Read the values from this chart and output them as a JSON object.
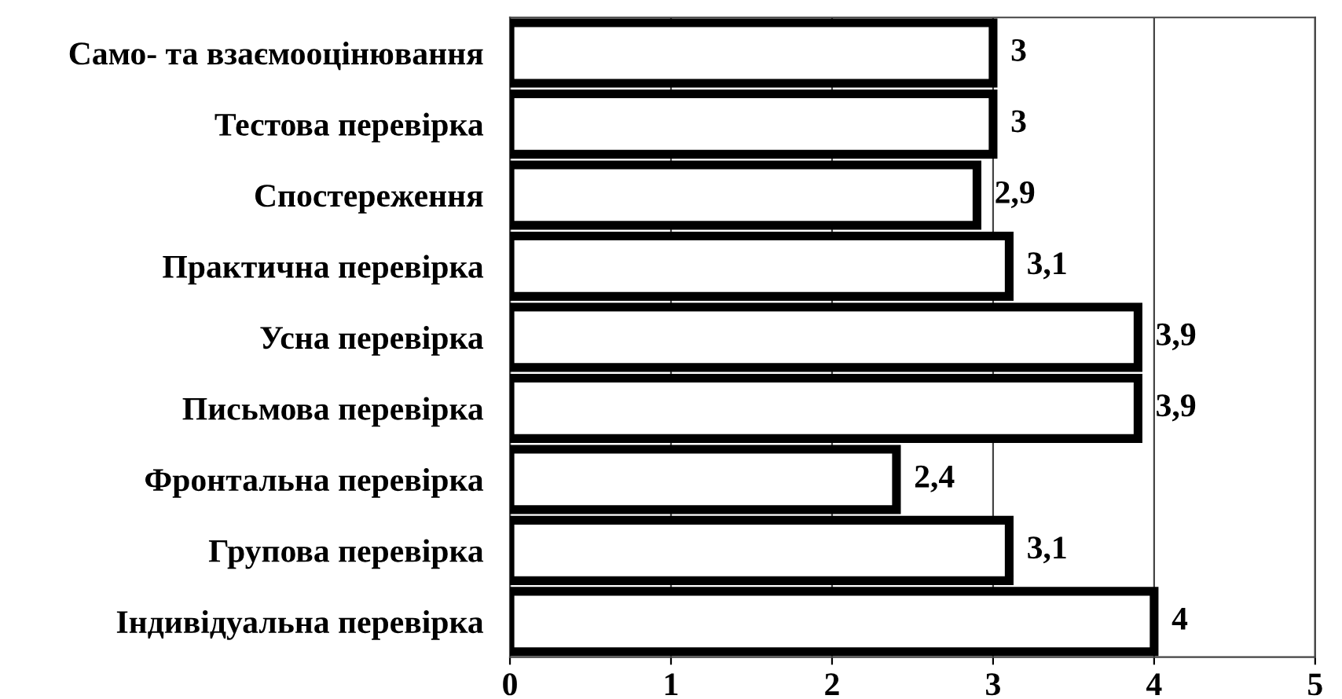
{
  "chart_data": {
    "type": "bar",
    "orientation": "horizontal",
    "categories": [
      "Само- та взаємооцінювання",
      "Тестова перевірка",
      "Спостереження",
      "Практична перевірка",
      "Усна перевірка",
      "Письмова перевірка",
      "Фронтальна перевірка",
      "Групова перевірка",
      "Індивідуальна перевірка"
    ],
    "values": [
      3,
      3,
      2.9,
      3.1,
      3.9,
      3.9,
      2.4,
      3.1,
      4
    ],
    "value_labels": [
      "3",
      "3",
      "2,9",
      "3,1",
      "3,9",
      "3,9",
      "2,4",
      "3,1",
      "4"
    ],
    "color": "#ffffff",
    "xlim": [
      0,
      5
    ],
    "xticks": [
      0,
      1,
      2,
      3,
      4,
      5
    ],
    "grid": "x"
  }
}
